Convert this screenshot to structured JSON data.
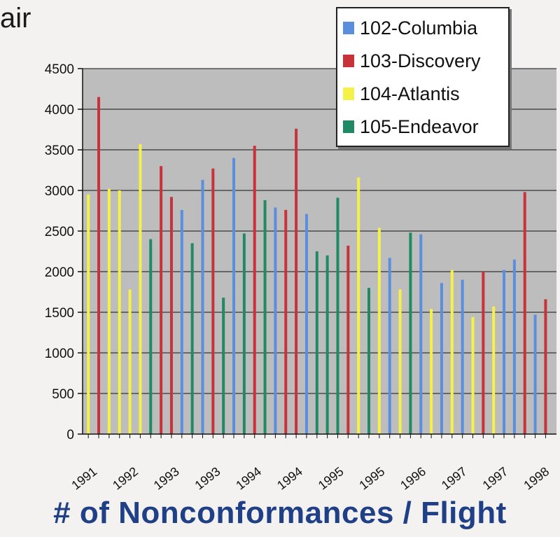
{
  "page": {
    "title_fragment": "air",
    "footer_title": "# of Nonconformances / Flight"
  },
  "legend": [
    {
      "label": "102-Columbia",
      "color": "#5b8fde"
    },
    {
      "label": "103-Discovery",
      "color": "#c8333b"
    },
    {
      "label": "104-Atlantis",
      "color": "#f4f148"
    },
    {
      "label": "105-Endeavor",
      "color": "#1f8a63"
    }
  ],
  "chart_data": {
    "type": "bar",
    "title": "# of Nonconformances / Flight",
    "xlabel": "",
    "ylabel": "",
    "ylim": [
      0,
      4500
    ],
    "yticks": [
      0,
      500,
      1000,
      1500,
      2000,
      2500,
      3000,
      3500,
      4000,
      4500
    ],
    "x_tick_labels": [
      "1991",
      "1992",
      "1993",
      "1993",
      "1994",
      "1994",
      "1995",
      "1995",
      "1996",
      "1997",
      "1997",
      "1998"
    ],
    "grid": true,
    "legend_position": "top-right",
    "series_colors": {
      "Columbia": "#5b8fde",
      "Discovery": "#c8333b",
      "Atlantis": "#f4f148",
      "Endeavor": "#1f8a63"
    },
    "bars": [
      {
        "orbiter": "Atlantis",
        "value": 2950
      },
      {
        "orbiter": "Discovery",
        "value": 4150
      },
      {
        "orbiter": "Atlantis",
        "value": 3020
      },
      {
        "orbiter": "Atlantis",
        "value": 3000
      },
      {
        "orbiter": "Atlantis",
        "value": 1780
      },
      {
        "orbiter": "Atlantis",
        "value": 3570
      },
      {
        "orbiter": "Endeavor",
        "value": 2400
      },
      {
        "orbiter": "Discovery",
        "value": 3300
      },
      {
        "orbiter": "Discovery",
        "value": 2920
      },
      {
        "orbiter": "Columbia",
        "value": 2760
      },
      {
        "orbiter": "Endeavor",
        "value": 2350
      },
      {
        "orbiter": "Columbia",
        "value": 3130
      },
      {
        "orbiter": "Discovery",
        "value": 3270
      },
      {
        "orbiter": "Endeavor",
        "value": 1680
      },
      {
        "orbiter": "Columbia",
        "value": 3400
      },
      {
        "orbiter": "Endeavor",
        "value": 2470
      },
      {
        "orbiter": "Discovery",
        "value": 3550
      },
      {
        "orbiter": "Endeavor",
        "value": 2880
      },
      {
        "orbiter": "Columbia",
        "value": 2790
      },
      {
        "orbiter": "Discovery",
        "value": 2760
      },
      {
        "orbiter": "Discovery",
        "value": 3760
      },
      {
        "orbiter": "Columbia",
        "value": 2710
      },
      {
        "orbiter": "Endeavor",
        "value": 2250
      },
      {
        "orbiter": "Endeavor",
        "value": 2200
      },
      {
        "orbiter": "Endeavor",
        "value": 2910
      },
      {
        "orbiter": "Discovery",
        "value": 2320
      },
      {
        "orbiter": "Atlantis",
        "value": 3160
      },
      {
        "orbiter": "Endeavor",
        "value": 1800
      },
      {
        "orbiter": "Atlantis",
        "value": 2540
      },
      {
        "orbiter": "Columbia",
        "value": 2170
      },
      {
        "orbiter": "Atlantis",
        "value": 1780
      },
      {
        "orbiter": "Endeavor",
        "value": 2480
      },
      {
        "orbiter": "Columbia",
        "value": 2460
      },
      {
        "orbiter": "Atlantis",
        "value": 1540
      },
      {
        "orbiter": "Columbia",
        "value": 1860
      },
      {
        "orbiter": "Atlantis",
        "value": 2020
      },
      {
        "orbiter": "Columbia",
        "value": 1900
      },
      {
        "orbiter": "Atlantis",
        "value": 1440
      },
      {
        "orbiter": "Discovery",
        "value": 2000
      },
      {
        "orbiter": "Atlantis",
        "value": 1570
      },
      {
        "orbiter": "Columbia",
        "value": 2020
      },
      {
        "orbiter": "Columbia",
        "value": 2150
      },
      {
        "orbiter": "Discovery",
        "value": 2980
      },
      {
        "orbiter": "Columbia",
        "value": 1470
      },
      {
        "orbiter": "Discovery",
        "value": 1660
      }
    ]
  }
}
